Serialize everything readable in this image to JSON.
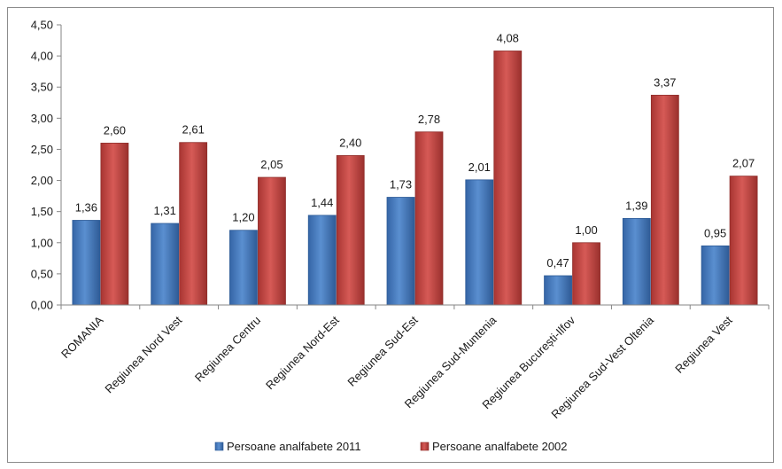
{
  "chart_data": {
    "type": "bar",
    "categories": [
      "ROMANIA",
      "Regiunea Nord Vest",
      "Regiunea Centru",
      "Regiunea Nord-Est",
      "Regiunea Sud-Est",
      "Regiunea Sud-Muntenia",
      "Regiunea București-Ilfov",
      "Regiunea Sud-Vest Oltenia",
      "Regiunea Vest"
    ],
    "series": [
      {
        "name": "Persoane analfabete 2011",
        "color": "#4a7ebb",
        "values": [
          1.36,
          1.31,
          1.2,
          1.44,
          1.73,
          2.01,
          0.47,
          1.39,
          0.95
        ],
        "labels": [
          "1,36",
          "1,31",
          "1,20",
          "1,44",
          "1,73",
          "2,01",
          "0,47",
          "1,39",
          "0,95"
        ]
      },
      {
        "name": "Persoane analfabete 2002",
        "color": "#be4b48",
        "values": [
          2.6,
          2.61,
          2.05,
          2.4,
          2.78,
          4.08,
          1.0,
          3.37,
          2.07
        ],
        "labels": [
          "2,60",
          "2,61",
          "2,05",
          "2,40",
          "2,78",
          "4,08",
          "1,00",
          "3,37",
          "2,07"
        ]
      }
    ],
    "y_ticks": [
      0,
      0.5,
      1,
      1.5,
      2,
      2.5,
      3,
      3.5,
      4,
      4.5
    ],
    "y_tick_labels": [
      "0,00",
      "0,50",
      "1,00",
      "1,50",
      "2,00",
      "2,50",
      "3,00",
      "3,50",
      "4,00",
      "4,50"
    ],
    "ylim": [
      0,
      4.5
    ],
    "grid": false,
    "legend": "bottom",
    "title": "",
    "xlabel": "",
    "ylabel": ""
  }
}
